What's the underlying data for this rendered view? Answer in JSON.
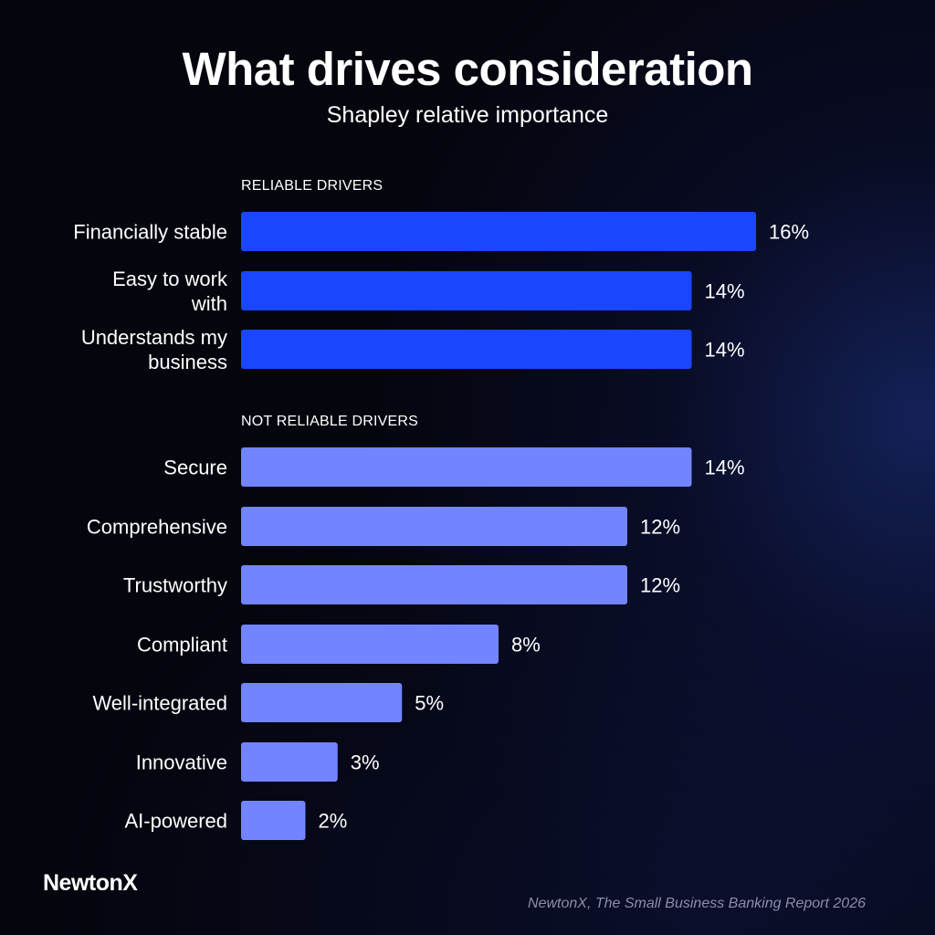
{
  "chart_data": {
    "type": "bar",
    "orientation": "horizontal",
    "title": "What drives consideration",
    "subtitle": "Shapley relative importance",
    "xlim": [
      0,
      16
    ],
    "grid": false,
    "value_suffix": "%",
    "groups": [
      {
        "label": "RELIABLE DRIVERS",
        "color": "#1a46ff",
        "items": [
          {
            "category": "Financially stable",
            "lines": [
              "Financially stable"
            ],
            "value": 16
          },
          {
            "category": "Easy to work with",
            "lines": [
              "Easy to work",
              "with"
            ],
            "value": 14
          },
          {
            "category": "Understands my business",
            "lines": [
              "Understands my",
              "business"
            ],
            "value": 14
          }
        ]
      },
      {
        "label": "NOT RELIABLE DRIVERS",
        "color": "#7284ff",
        "items": [
          {
            "category": "Secure",
            "lines": [
              "Secure"
            ],
            "value": 14
          },
          {
            "category": "Comprehensive",
            "lines": [
              "Comprehensive"
            ],
            "value": 12
          },
          {
            "category": "Trustworthy",
            "lines": [
              "Trustworthy"
            ],
            "value": 12
          },
          {
            "category": "Compliant",
            "lines": [
              "Compliant"
            ],
            "value": 8
          },
          {
            "category": "Well-integrated",
            "lines": [
              "Well-integrated"
            ],
            "value": 5
          },
          {
            "category": "Innovative",
            "lines": [
              "Innovative"
            ],
            "value": 3
          },
          {
            "category": "AI-powered",
            "lines": [
              "AI-powered"
            ],
            "value": 2
          }
        ]
      }
    ]
  },
  "brand": {
    "logo_text": "NewtonX"
  },
  "footer": {
    "source": "NewtonX, The Small Business Banking Report 2026"
  }
}
